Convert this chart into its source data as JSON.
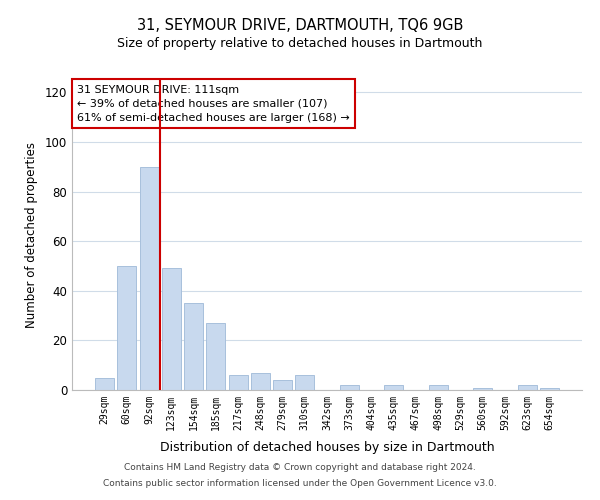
{
  "title": "31, SEYMOUR DRIVE, DARTMOUTH, TQ6 9GB",
  "subtitle": "Size of property relative to detached houses in Dartmouth",
  "xlabel": "Distribution of detached houses by size in Dartmouth",
  "ylabel": "Number of detached properties",
  "bar_color": "#c8d9ee",
  "bar_edge_color": "#a8c0dc",
  "categories": [
    "29sqm",
    "60sqm",
    "92sqm",
    "123sqm",
    "154sqm",
    "185sqm",
    "217sqm",
    "248sqm",
    "279sqm",
    "310sqm",
    "342sqm",
    "373sqm",
    "404sqm",
    "435sqm",
    "467sqm",
    "498sqm",
    "529sqm",
    "560sqm",
    "592sqm",
    "623sqm",
    "654sqm"
  ],
  "values": [
    5,
    50,
    90,
    49,
    35,
    27,
    6,
    7,
    4,
    6,
    0,
    2,
    0,
    2,
    0,
    2,
    0,
    1,
    0,
    2,
    1
  ],
  "ylim": [
    0,
    125
  ],
  "yticks": [
    0,
    20,
    40,
    60,
    80,
    100,
    120
  ],
  "vline_x": 2.5,
  "vline_color": "#cc0000",
  "annotation_title": "31 SEYMOUR DRIVE: 111sqm",
  "annotation_line1": "← 39% of detached houses are smaller (107)",
  "annotation_line2": "61% of semi-detached houses are larger (168) →",
  "annotation_box_color": "#ffffff",
  "annotation_box_edge": "#cc0000",
  "footer1": "Contains HM Land Registry data © Crown copyright and database right 2024.",
  "footer2": "Contains public sector information licensed under the Open Government Licence v3.0.",
  "background_color": "#ffffff",
  "grid_color": "#d0dce8"
}
